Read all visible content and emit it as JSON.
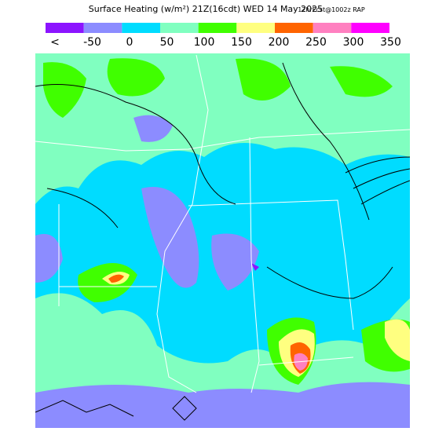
{
  "header": {
    "title": "Surface Heating (w/m²) 21Z(16cdt) WED 14 May 2025",
    "model": "12hrFcst@1002z RAP"
  },
  "legend": {
    "colors": [
      "#8c14ff",
      "#8c8cff",
      "#00dcff",
      "#80ffc0",
      "#40ff00",
      "#ffff80",
      "#ff6400",
      "#ff80c0",
      "#ff00ff"
    ],
    "labels": [
      "<",
      "-50",
      "0",
      "50",
      "100",
      "150",
      "200",
      "250",
      "300",
      "350"
    ]
  }
}
